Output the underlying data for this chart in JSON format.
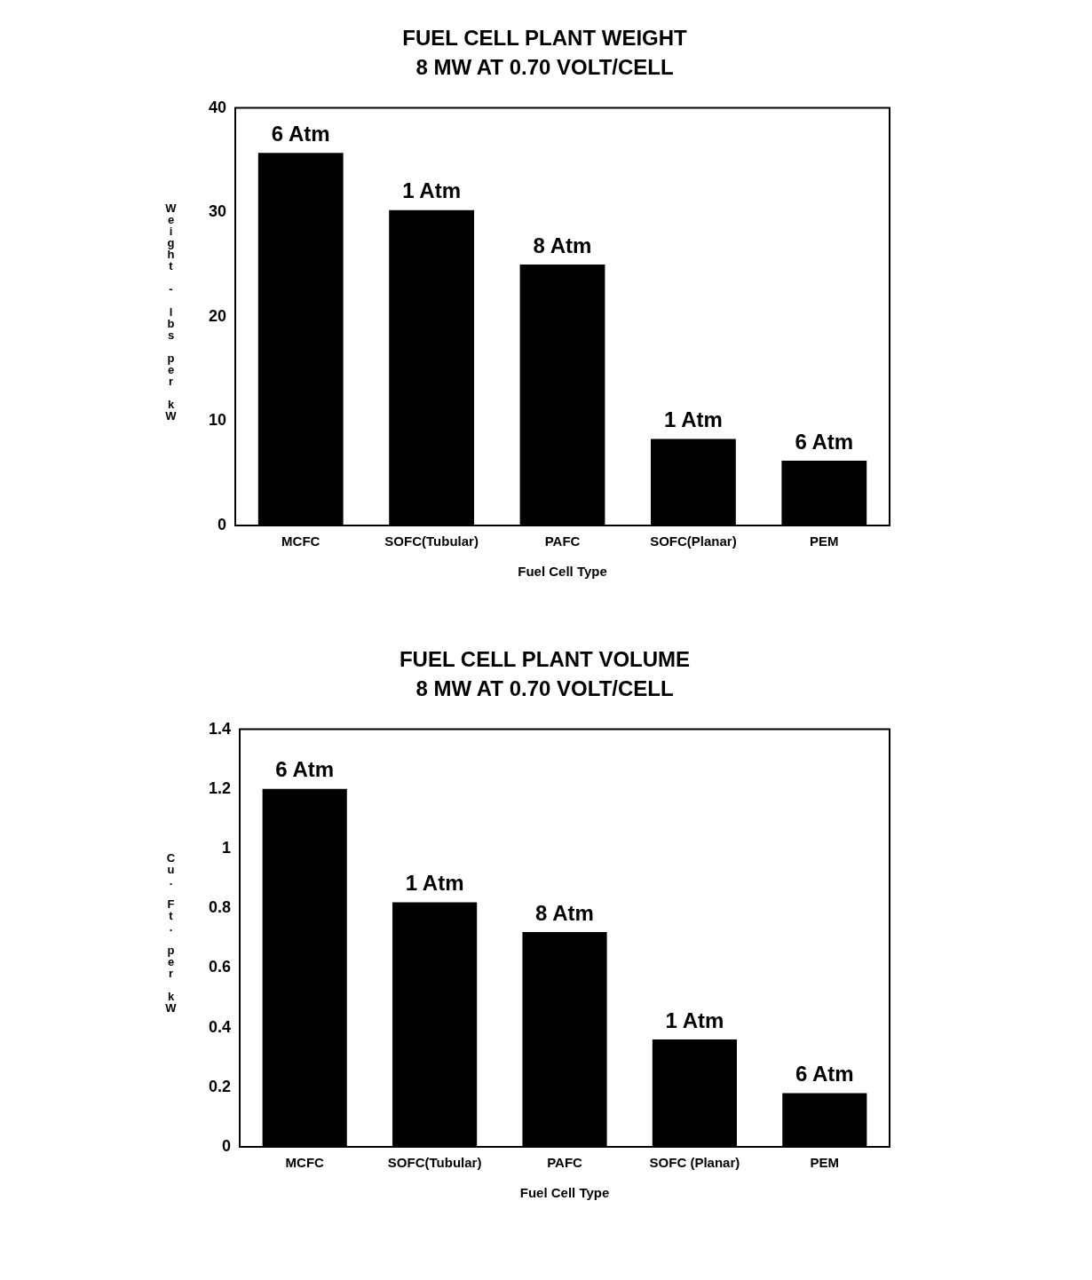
{
  "chart_data": [
    {
      "type": "bar",
      "title": "FUEL CELL PLANT WEIGHT",
      "subtitle": "8 MW AT 0.70 VOLT/CELL",
      "xlabel": "Fuel Cell Type",
      "ylabel": "Weight - lbs per kW",
      "categories": [
        "MCFC",
        "SOFC(Tubular)",
        "PAFC",
        "SOFC(Planar)",
        "PEM"
      ],
      "values": [
        35.7,
        30.2,
        25.0,
        8.3,
        6.2
      ],
      "color": "#000000",
      "ylim": [
        0,
        40
      ],
      "yticks": [
        0,
        10,
        20,
        30,
        40
      ],
      "grid": false,
      "legend": false,
      "annotations": [
        {
          "text": "6 Atm",
          "x": "MCFC",
          "y": 35.7
        },
        {
          "text": "1 Atm",
          "x": "SOFC(Tubular)",
          "y": 30.2
        },
        {
          "text": "8 Atm",
          "x": "PAFC",
          "y": 25.0
        },
        {
          "text": "1 Atm",
          "x": "SOFC(Planar)",
          "y": 8.3
        },
        {
          "text": "6 Atm",
          "x": "PEM",
          "y": 6.2
        }
      ]
    },
    {
      "type": "bar",
      "title": "FUEL CELL PLANT VOLUME",
      "subtitle": "8 MW AT 0.70 VOLT/CELL",
      "xlabel": "Fuel Cell Type",
      "ylabel": "Cu. Ft. per kW",
      "categories": [
        "MCFC",
        "SOFC(Tubular)",
        "PAFC",
        "SOFC (Planar)",
        "PEM"
      ],
      "values": [
        1.2,
        0.82,
        0.72,
        0.36,
        0.18
      ],
      "color": "#000000",
      "ylim": [
        0,
        1.4
      ],
      "yticks": [
        0,
        0.2,
        0.4,
        0.6,
        0.8,
        1,
        1.2,
        1.4
      ],
      "grid": false,
      "legend": false,
      "annotations": [
        {
          "text": "6 Atm",
          "x": "MCFC",
          "y": 1.2
        },
        {
          "text": "1 Atm",
          "x": "SOFC(Tubular)",
          "y": 0.82
        },
        {
          "text": "8 Atm",
          "x": "PAFC",
          "y": 0.72
        },
        {
          "text": "1 Atm",
          "x": "SOFC (Planar)",
          "y": 0.36
        },
        {
          "text": "6 Atm",
          "x": "PEM",
          "y": 0.18
        }
      ]
    }
  ]
}
